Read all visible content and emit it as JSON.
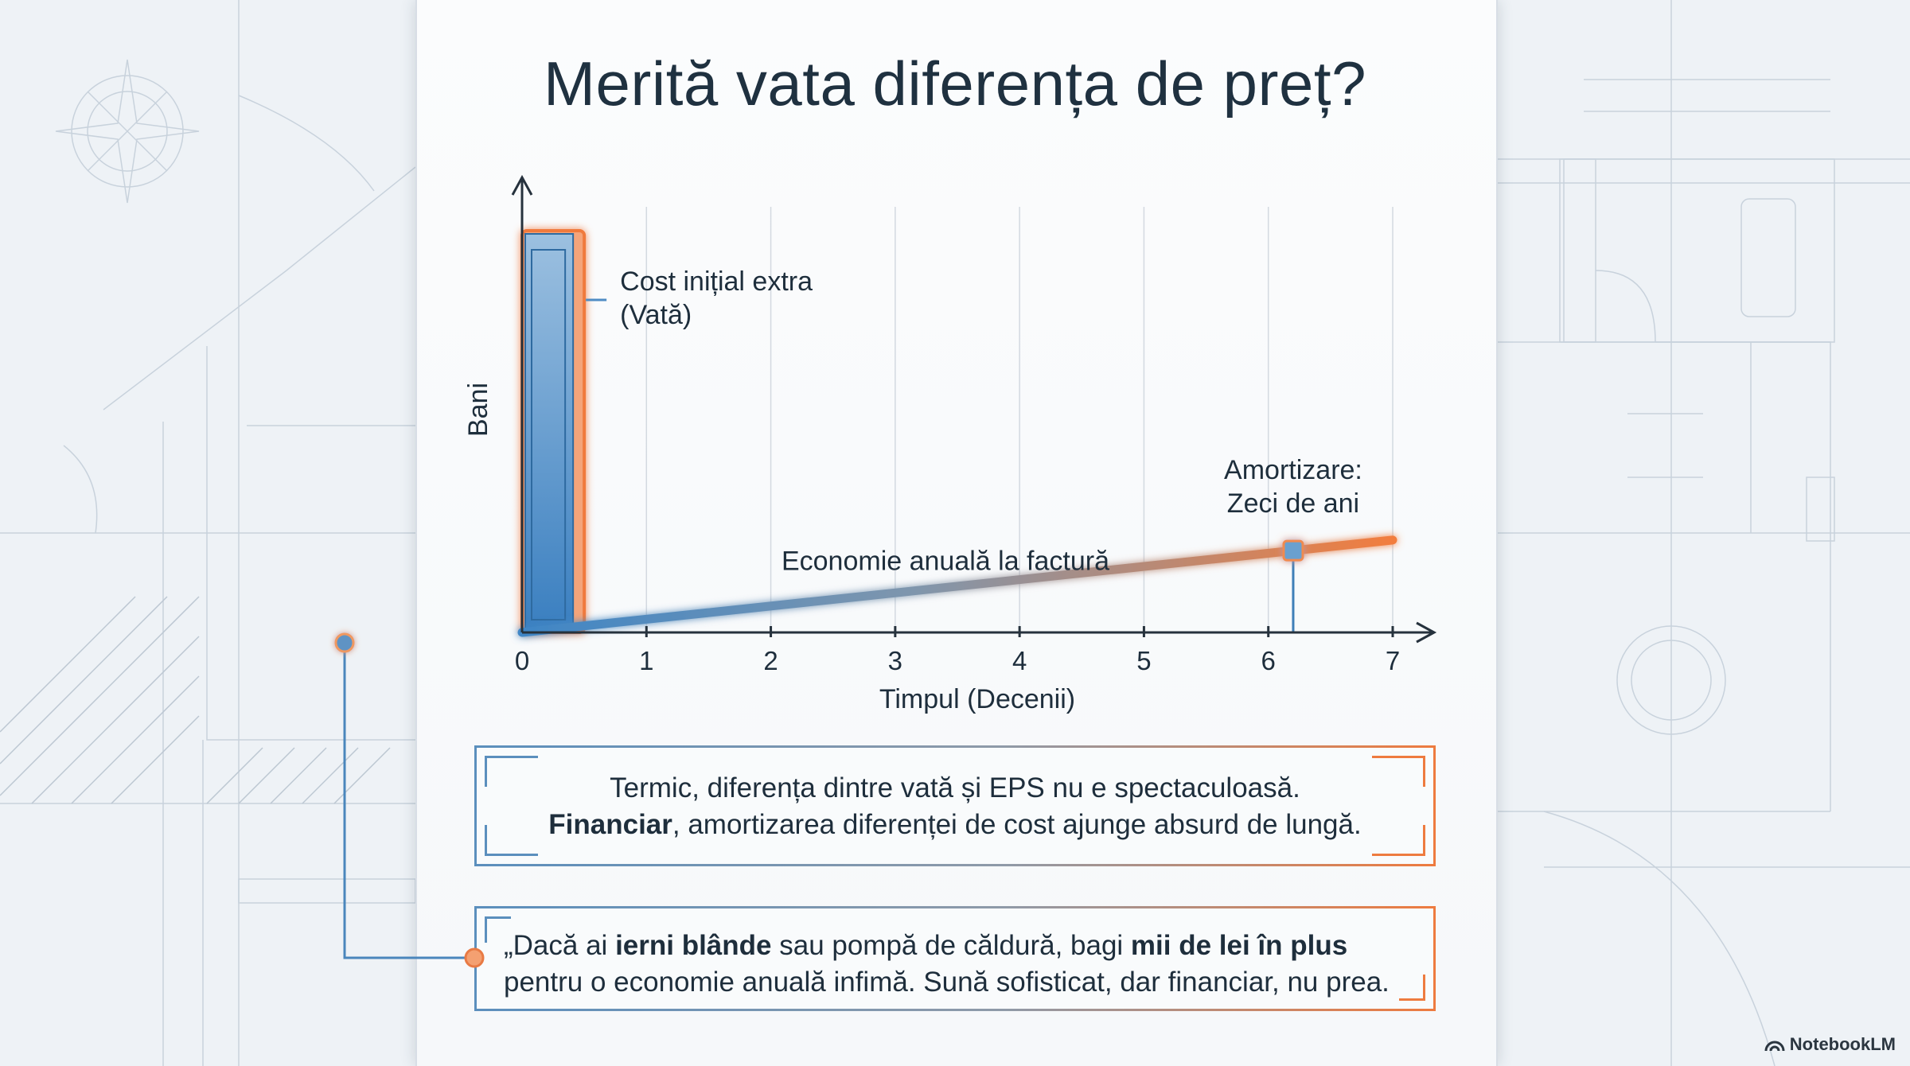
{
  "slide": {
    "title": "Merită vata diferența de preț?"
  },
  "chart_data": {
    "type": "bar",
    "xlabel": "Timpul (Decenii)",
    "ylabel": "Bani",
    "xlim": [
      0,
      7
    ],
    "ylim": [
      0,
      1
    ],
    "x_ticks": [
      "0",
      "1",
      "2",
      "3",
      "4",
      "5",
      "6",
      "7"
    ],
    "grid": true,
    "bars": [
      {
        "x0": 0,
        "x1": 0.5,
        "value": 1.0,
        "label": "Cost inițial extra",
        "label2": "(Vată)"
      }
    ],
    "line": {
      "label": "Economie anuală la factură",
      "x": [
        0,
        7
      ],
      "y": [
        0.0,
        0.23
      ]
    },
    "marker": {
      "x": 6.2,
      "y": 0.2,
      "label": "Amortizare:",
      "label2": "Zeci de ani"
    },
    "colors": {
      "blue": "#4f8cc4",
      "orange": "#f07a3c",
      "axis": "#26323d"
    }
  },
  "box1": {
    "line1": "Termic, diferența dintre vată și EPS nu e spectaculoasă.",
    "bold": "Financiar",
    "line2": ", amortizarea diferenței de cost ajunge absurd de lungă."
  },
  "box2": {
    "t1": "„Dacă ai ",
    "b1": "ierni blânde",
    "t2": " sau pompă de căldură, bagi ",
    "b2": "mii de lei în plus",
    "t3": "pentru o economie anuală infimă. Sună sofisticat, dar financiar, nu prea."
  },
  "brand": {
    "name": "NotebookLM",
    "icon": "notebooklm-logo-icon"
  }
}
